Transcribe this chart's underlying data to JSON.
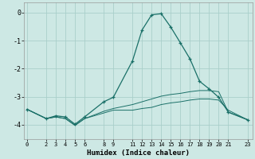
{
  "xlabel": "Humidex (Indice chaleur)",
  "bg_color": "#cde8e4",
  "grid_color": "#aacfca",
  "line_color": "#1a7068",
  "xticks": [
    0,
    2,
    3,
    4,
    5,
    6,
    8,
    9,
    11,
    12,
    13,
    14,
    15,
    16,
    17,
    18,
    19,
    20,
    21,
    23
  ],
  "yticks": [
    0,
    -1,
    -2,
    -3,
    -4
  ],
  "xlim": [
    -0.3,
    23.5
  ],
  "ylim": [
    -4.5,
    0.35
  ],
  "lines": [
    {
      "x": [
        0,
        2,
        3,
        4,
        5,
        6,
        8,
        9,
        11,
        12,
        13,
        14,
        15,
        16,
        17,
        18,
        19,
        20,
        21,
        23
      ],
      "y": [
        -3.45,
        -3.78,
        -3.68,
        -3.72,
        -3.98,
        -3.72,
        -3.18,
        -3.02,
        -1.72,
        -0.62,
        -0.08,
        -0.04,
        -0.52,
        -1.08,
        -1.65,
        -2.45,
        -2.72,
        -3.02,
        -3.55,
        -3.82
      ],
      "marker": "+"
    },
    {
      "x": [
        0,
        2,
        3,
        4,
        5,
        6,
        8,
        9,
        11,
        12,
        13,
        14,
        15,
        16,
        17,
        18,
        19,
        20,
        21,
        23
      ],
      "y": [
        -3.45,
        -3.78,
        -3.72,
        -3.78,
        -4.02,
        -3.78,
        -3.52,
        -3.42,
        -3.28,
        -3.18,
        -3.08,
        -2.98,
        -2.92,
        -2.88,
        -2.82,
        -2.78,
        -2.78,
        -2.82,
        -3.55,
        -3.82
      ],
      "marker": null
    },
    {
      "x": [
        0,
        2,
        3,
        4,
        5,
        6,
        8,
        9,
        11,
        12,
        13,
        14,
        15,
        16,
        17,
        18,
        19,
        20,
        21,
        23
      ],
      "y": [
        -3.45,
        -3.78,
        -3.72,
        -3.78,
        -4.02,
        -3.78,
        -3.58,
        -3.48,
        -3.48,
        -3.42,
        -3.38,
        -3.28,
        -3.22,
        -3.18,
        -3.12,
        -3.08,
        -3.08,
        -3.12,
        -3.48,
        -3.82
      ],
      "marker": null
    }
  ]
}
